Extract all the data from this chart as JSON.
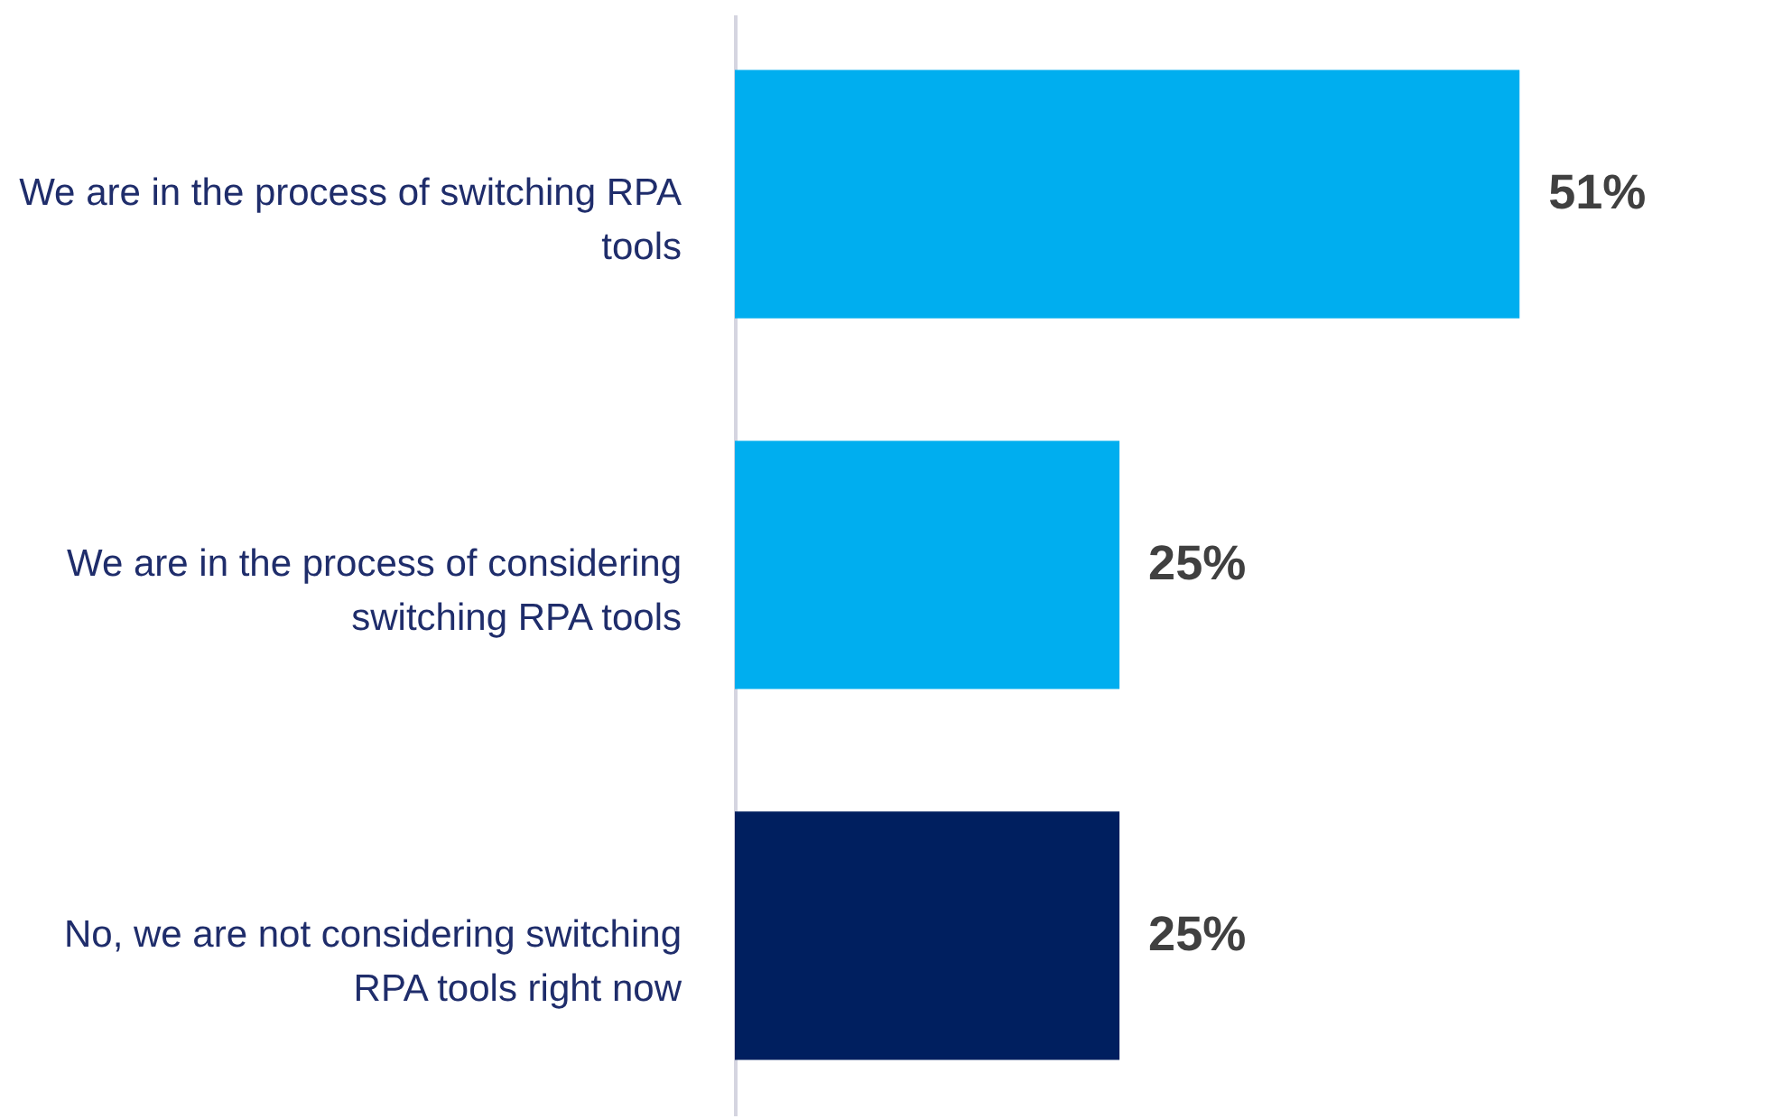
{
  "chart_data": {
    "type": "bar",
    "orientation": "horizontal",
    "categories": [
      "We are in the process of switching RPA tools",
      "We are in the process of considering switching RPA tools",
      "No, we are not considering switching RPA tools right now"
    ],
    "values": [
      51,
      25,
      25
    ],
    "colors": [
      "#00aeef",
      "#00aeef",
      "#001f5f"
    ],
    "value_labels": [
      "51%",
      "25%",
      "25%"
    ],
    "grid": false
  }
}
